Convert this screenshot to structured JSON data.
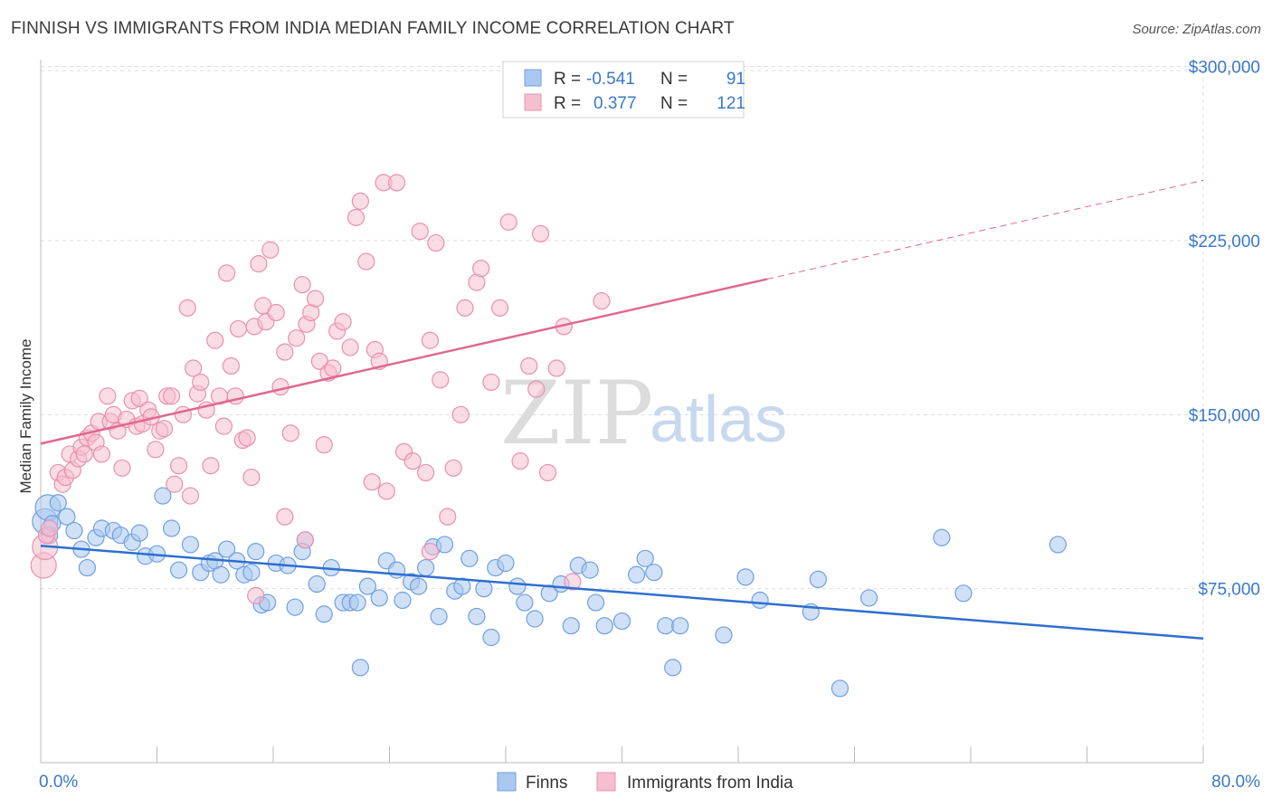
{
  "title": "FINNISH VS IMMIGRANTS FROM INDIA MEDIAN FAMILY INCOME CORRELATION CHART",
  "source": "Source: ZipAtlas.com",
  "watermark": {
    "zip": "ZIP",
    "atlas": "atlas"
  },
  "colors": {
    "finns_fill": "#a9c8f0",
    "finns_stroke": "#6f9fe0",
    "finns_line": "#2e6fd0",
    "india_fill": "#f5bfd0",
    "india_stroke": "#e890ae",
    "india_line": "#e06890",
    "tick": "#3a78c8",
    "grid": "#dddddd"
  },
  "legend": {
    "r_label": "R =",
    "n_label": "N =",
    "rows": [
      {
        "name": "Finns",
        "r": "-0.541",
        "n": "91"
      },
      {
        "name": "Immigrants from India",
        "r": "0.377",
        "n": "121"
      }
    ]
  },
  "chart_data": {
    "type": "scatter",
    "title": "FINNISH VS IMMIGRANTS FROM INDIA MEDIAN FAMILY INCOME CORRELATION CHART",
    "xlabel": "",
    "ylabel": "Median Family Income",
    "xlim": [
      0,
      80
    ],
    "ylim": [
      0,
      310000
    ],
    "x_tick_labels": [
      "0.0%",
      "80.0%"
    ],
    "y_ticks": [
      75000,
      150000,
      225000,
      300000
    ],
    "y_tick_labels": [
      "$75,000",
      "$150,000",
      "$225,000",
      "$300,000"
    ],
    "series": [
      {
        "name": "Finns",
        "trend": {
          "x": [
            0,
            80
          ],
          "y": [
            93500,
            53500
          ],
          "solid_until": 80
        },
        "points": [
          [
            0.3,
            104000
          ],
          [
            0.5,
            110000
          ],
          [
            0.6,
            98000
          ],
          [
            0.8,
            103000
          ],
          [
            1.2,
            112000
          ],
          [
            1.8,
            106000
          ],
          [
            2.3,
            100000
          ],
          [
            2.8,
            92000
          ],
          [
            3.2,
            84000
          ],
          [
            3.8,
            97000
          ],
          [
            4.2,
            101000
          ],
          [
            5.0,
            100000
          ],
          [
            5.5,
            98000
          ],
          [
            6.3,
            95000
          ],
          [
            6.8,
            99000
          ],
          [
            7.2,
            89000
          ],
          [
            8.0,
            90000
          ],
          [
            8.4,
            115000
          ],
          [
            9.0,
            101000
          ],
          [
            9.5,
            83000
          ],
          [
            10.3,
            94000
          ],
          [
            11.0,
            82000
          ],
          [
            11.6,
            86000
          ],
          [
            12.0,
            87000
          ],
          [
            12.4,
            81000
          ],
          [
            12.8,
            92000
          ],
          [
            13.5,
            87000
          ],
          [
            14.0,
            81000
          ],
          [
            14.5,
            82000
          ],
          [
            14.8,
            91000
          ],
          [
            15.2,
            68000
          ],
          [
            15.6,
            69000
          ],
          [
            16.2,
            86000
          ],
          [
            17.0,
            85000
          ],
          [
            17.5,
            67000
          ],
          [
            18.2,
            96000
          ],
          [
            18.0,
            91000
          ],
          [
            19.0,
            77000
          ],
          [
            19.5,
            64000
          ],
          [
            20.0,
            84000
          ],
          [
            20.8,
            69000
          ],
          [
            21.3,
            69000
          ],
          [
            21.8,
            69000
          ],
          [
            22.0,
            41000
          ],
          [
            22.5,
            76000
          ],
          [
            23.3,
            71000
          ],
          [
            23.8,
            87000
          ],
          [
            24.5,
            83000
          ],
          [
            24.9,
            70000
          ],
          [
            25.5,
            78000
          ],
          [
            26.0,
            76000
          ],
          [
            26.5,
            84000
          ],
          [
            27.0,
            93000
          ],
          [
            27.4,
            63000
          ],
          [
            27.8,
            94000
          ],
          [
            28.5,
            74000
          ],
          [
            29.0,
            76000
          ],
          [
            29.5,
            88000
          ],
          [
            30.0,
            63000
          ],
          [
            30.5,
            75000
          ],
          [
            31.0,
            54000
          ],
          [
            31.3,
            84000
          ],
          [
            32.0,
            86000
          ],
          [
            32.8,
            76000
          ],
          [
            33.3,
            69000
          ],
          [
            34.0,
            62000
          ],
          [
            35.0,
            73000
          ],
          [
            35.8,
            77000
          ],
          [
            36.5,
            59000
          ],
          [
            37.0,
            85000
          ],
          [
            37.8,
            83000
          ],
          [
            38.2,
            69000
          ],
          [
            38.8,
            59000
          ],
          [
            40.0,
            61000
          ],
          [
            41.0,
            81000
          ],
          [
            41.6,
            88000
          ],
          [
            42.2,
            82000
          ],
          [
            43.0,
            59000
          ],
          [
            43.5,
            41000
          ],
          [
            44.0,
            59000
          ],
          [
            47.0,
            55000
          ],
          [
            48.5,
            80000
          ],
          [
            49.5,
            70000
          ],
          [
            53.5,
            79000
          ],
          [
            53.0,
            65000
          ],
          [
            55.0,
            32000
          ],
          [
            57.0,
            71000
          ],
          [
            62.0,
            97000
          ],
          [
            63.5,
            73000
          ],
          [
            70.0,
            94000
          ]
        ]
      },
      {
        "name": "Immigrants from India",
        "trend": {
          "x": [
            0,
            80
          ],
          "y": [
            137500,
            251000
          ],
          "solid_until": 50
        },
        "points": [
          [
            0.2,
            85000
          ],
          [
            0.3,
            93000
          ],
          [
            0.4,
            98000
          ],
          [
            0.6,
            101000
          ],
          [
            1.2,
            125000
          ],
          [
            1.5,
            120000
          ],
          [
            1.7,
            123000
          ],
          [
            2.0,
            133000
          ],
          [
            2.2,
            126000
          ],
          [
            2.6,
            131000
          ],
          [
            2.8,
            136000
          ],
          [
            3.0,
            133000
          ],
          [
            3.2,
            140000
          ],
          [
            3.5,
            142000
          ],
          [
            3.8,
            138000
          ],
          [
            4.0,
            147000
          ],
          [
            4.2,
            133000
          ],
          [
            4.6,
            158000
          ],
          [
            4.8,
            147000
          ],
          [
            5.0,
            150000
          ],
          [
            5.3,
            143000
          ],
          [
            5.6,
            127000
          ],
          [
            5.9,
            148000
          ],
          [
            6.3,
            156000
          ],
          [
            6.6,
            145000
          ],
          [
            6.8,
            157000
          ],
          [
            7.0,
            146000
          ],
          [
            7.4,
            152000
          ],
          [
            7.6,
            149000
          ],
          [
            7.9,
            135000
          ],
          [
            8.2,
            143000
          ],
          [
            8.5,
            144000
          ],
          [
            8.7,
            158000
          ],
          [
            9.0,
            158000
          ],
          [
            9.2,
            120000
          ],
          [
            9.5,
            128000
          ],
          [
            9.8,
            150000
          ],
          [
            10.1,
            196000
          ],
          [
            10.3,
            115000
          ],
          [
            10.5,
            170000
          ],
          [
            10.8,
            159000
          ],
          [
            11.0,
            164000
          ],
          [
            11.4,
            152000
          ],
          [
            11.7,
            128000
          ],
          [
            12.0,
            182000
          ],
          [
            12.3,
            158000
          ],
          [
            12.6,
            145000
          ],
          [
            12.8,
            211000
          ],
          [
            13.1,
            171000
          ],
          [
            13.4,
            158000
          ],
          [
            13.6,
            187000
          ],
          [
            13.9,
            139000
          ],
          [
            14.2,
            140000
          ],
          [
            14.5,
            123000
          ],
          [
            14.7,
            188000
          ],
          [
            15.0,
            215000
          ],
          [
            15.3,
            197000
          ],
          [
            15.5,
            190000
          ],
          [
            15.8,
            221000
          ],
          [
            16.2,
            194000
          ],
          [
            16.5,
            162000
          ],
          [
            16.8,
            177000
          ],
          [
            17.2,
            142000
          ],
          [
            17.6,
            183000
          ],
          [
            18.0,
            206000
          ],
          [
            18.3,
            189000
          ],
          [
            18.6,
            194000
          ],
          [
            18.9,
            200000
          ],
          [
            19.2,
            173000
          ],
          [
            19.5,
            137000
          ],
          [
            19.8,
            168000
          ],
          [
            20.1,
            170000
          ],
          [
            20.4,
            186000
          ],
          [
            20.8,
            190000
          ],
          [
            21.3,
            179000
          ],
          [
            21.7,
            235000
          ],
          [
            22.0,
            242000
          ],
          [
            22.4,
            216000
          ],
          [
            22.8,
            121000
          ],
          [
            23.0,
            178000
          ],
          [
            23.3,
            173000
          ],
          [
            23.6,
            250000
          ],
          [
            23.8,
            117000
          ],
          [
            24.5,
            250000
          ],
          [
            25.0,
            134000
          ],
          [
            25.6,
            130000
          ],
          [
            26.1,
            229000
          ],
          [
            26.5,
            125000
          ],
          [
            26.8,
            182000
          ],
          [
            27.2,
            224000
          ],
          [
            27.5,
            165000
          ],
          [
            28.0,
            106000
          ],
          [
            28.4,
            127000
          ],
          [
            28.9,
            150000
          ],
          [
            29.2,
            196000
          ],
          [
            30.0,
            207000
          ],
          [
            30.3,
            213000
          ],
          [
            31.0,
            164000
          ],
          [
            31.6,
            196000
          ],
          [
            32.2,
            233000
          ],
          [
            33.0,
            130000
          ],
          [
            33.6,
            171000
          ],
          [
            34.1,
            161000
          ],
          [
            34.4,
            228000
          ],
          [
            34.9,
            125000
          ],
          [
            35.5,
            170000
          ],
          [
            36.0,
            188000
          ],
          [
            38.6,
            199000
          ],
          [
            16.8,
            106000
          ],
          [
            14.8,
            72000
          ],
          [
            18.2,
            96000
          ],
          [
            26.8,
            91000
          ],
          [
            36.6,
            78000
          ]
        ]
      }
    ]
  }
}
